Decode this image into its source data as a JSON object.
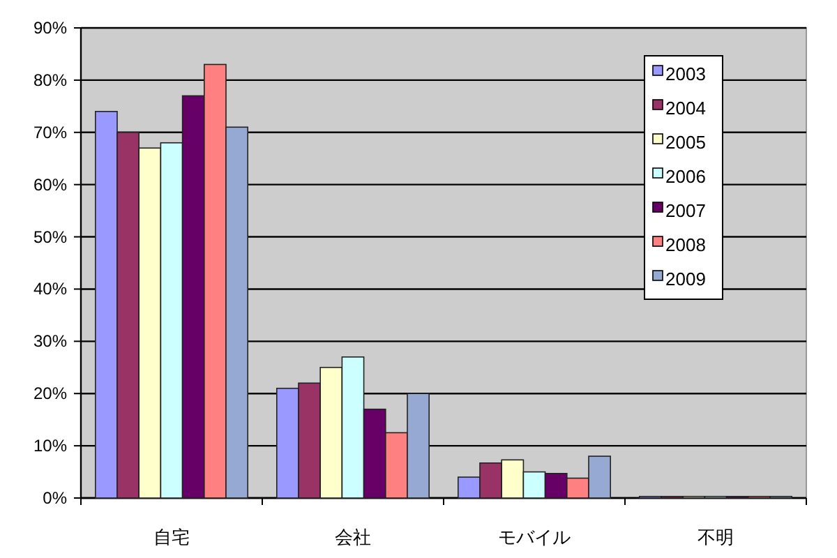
{
  "chart_data": {
    "type": "bar",
    "categories": [
      "自宅",
      "会社",
      "モバイル",
      "不明"
    ],
    "series": [
      {
        "name": "2003",
        "color": "#9999ff",
        "values": [
          74,
          21,
          4,
          0.3
        ]
      },
      {
        "name": "2004",
        "color": "#993366",
        "values": [
          70,
          22,
          6.7,
          0.3
        ]
      },
      {
        "name": "2005",
        "color": "#ffffcc",
        "values": [
          67,
          25,
          7.3,
          0.3
        ]
      },
      {
        "name": "2006",
        "color": "#ccffff",
        "values": [
          68,
          27,
          5,
          0.3
        ]
      },
      {
        "name": "2007",
        "color": "#660066",
        "values": [
          77,
          17,
          4.7,
          0.3
        ]
      },
      {
        "name": "2008",
        "color": "#ff8080",
        "values": [
          83,
          12.5,
          3.8,
          0.3
        ]
      },
      {
        "name": "2009",
        "color": "#95a9d3",
        "values": [
          71,
          20,
          8,
          0.3
        ]
      }
    ],
    "ylim": [
      0,
      90
    ],
    "yticks": [
      {
        "value": 0,
        "label": "0%"
      },
      {
        "value": 10,
        "label": "10%"
      },
      {
        "value": 20,
        "label": "20%"
      },
      {
        "value": 30,
        "label": "30%"
      },
      {
        "value": 40,
        "label": "40%"
      },
      {
        "value": 50,
        "label": "50%"
      },
      {
        "value": 60,
        "label": "60%"
      },
      {
        "value": 70,
        "label": "70%"
      },
      {
        "value": 80,
        "label": "80%"
      },
      {
        "value": 90,
        "label": "90%"
      }
    ],
    "grid": "y",
    "legend": "top right"
  }
}
